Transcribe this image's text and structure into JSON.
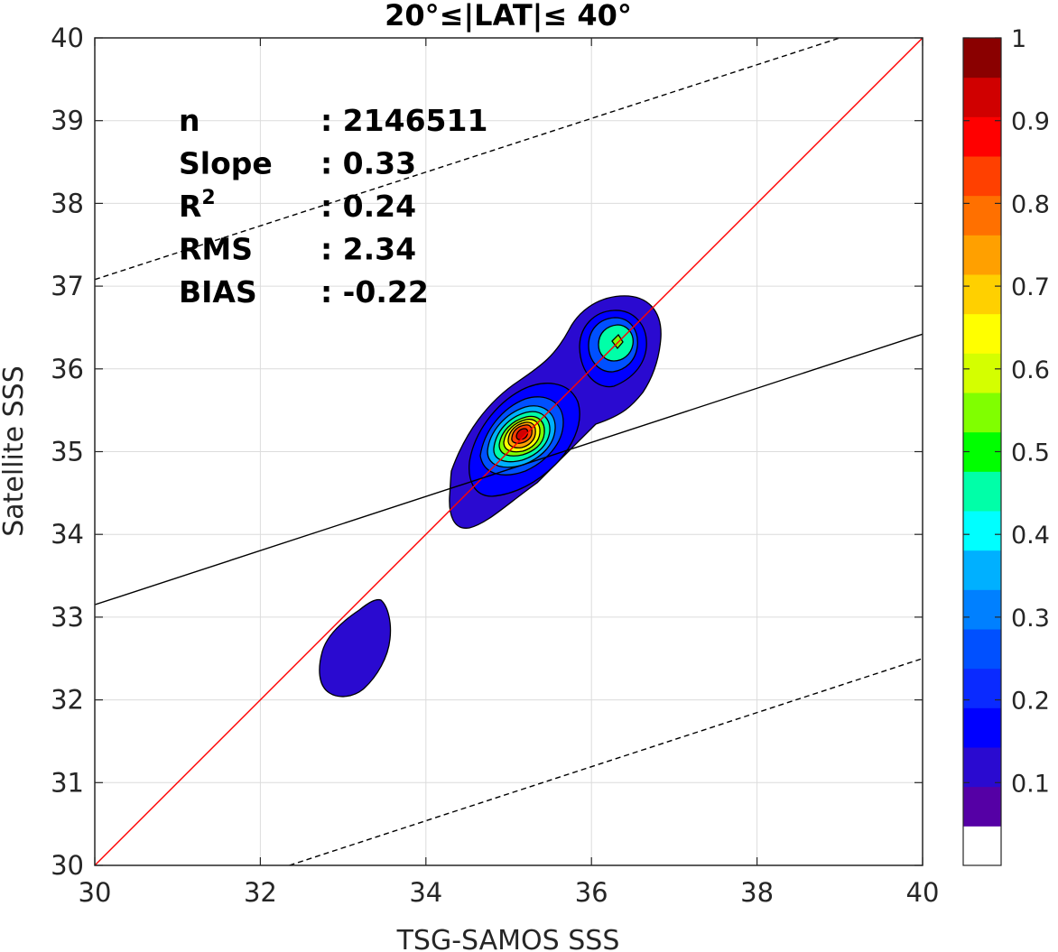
{
  "chart_data": {
    "type": "heatmap",
    "title": "20°≤|LAT|≤ 40°",
    "xlabel": "TSG-SAMOS SSS",
    "ylabel": "Satellite SSS",
    "xlim": [
      30,
      40
    ],
    "ylim": [
      30,
      40
    ],
    "xticks": [
      "30",
      "32",
      "34",
      "36",
      "38",
      "40"
    ],
    "yticks": [
      "30",
      "31",
      "32",
      "33",
      "34",
      "35",
      "36",
      "37",
      "38",
      "39",
      "40"
    ],
    "grid": true,
    "stats": [
      {
        "label": "n",
        "value": ": 2146511"
      },
      {
        "label": "Slope",
        "value": ": 0.33"
      },
      {
        "label": "R",
        "sup": "2",
        "value": ": 0.24"
      },
      {
        "label": "RMS",
        "value": ": 2.34"
      },
      {
        "label": "BIAS",
        "value": ": -0.22"
      }
    ],
    "lines": [
      {
        "kind": "one-to-one",
        "color": "#ff0000",
        "x": [
          30,
          40
        ],
        "y": [
          30,
          40
        ]
      },
      {
        "kind": "regression",
        "color": "#000000",
        "x": [
          30,
          40
        ],
        "y": [
          33.15,
          36.42
        ]
      },
      {
        "kind": "upper-bound",
        "color": "#000000",
        "dashed": true,
        "x": [
          30,
          39
        ],
        "y": [
          37.08,
          40
        ]
      },
      {
        "kind": "lower-bound",
        "color": "#000000",
        "dashed": true,
        "x": [
          32.35,
          40
        ],
        "y": [
          30,
          32.5
        ]
      }
    ],
    "density_peaks": [
      {
        "x": 35.2,
        "y": 35.2,
        "max": 1.0
      },
      {
        "x": 36.3,
        "y": 36.3,
        "max": 0.35
      },
      {
        "x": 33.1,
        "y": 32.6,
        "max": 0.1
      }
    ],
    "colorbar": {
      "ticks": [
        "0.1",
        "0.2",
        "0.3",
        "0.4",
        "0.5",
        "0.6",
        "0.7",
        "0.8",
        "0.9",
        "1"
      ],
      "range": [
        0,
        1
      ],
      "colors": [
        "#ffffff",
        "#5500a5",
        "#2a0ad0",
        "#0000ff",
        "#0a2aff",
        "#0050ff",
        "#0080ff",
        "#00b0ff",
        "#00ffff",
        "#00ffa8",
        "#00ff00",
        "#80ff00",
        "#d4ff00",
        "#ffff00",
        "#ffd000",
        "#ffa000",
        "#ff7000",
        "#ff4000",
        "#ff0000",
        "#d00000",
        "#8a0000"
      ]
    }
  }
}
